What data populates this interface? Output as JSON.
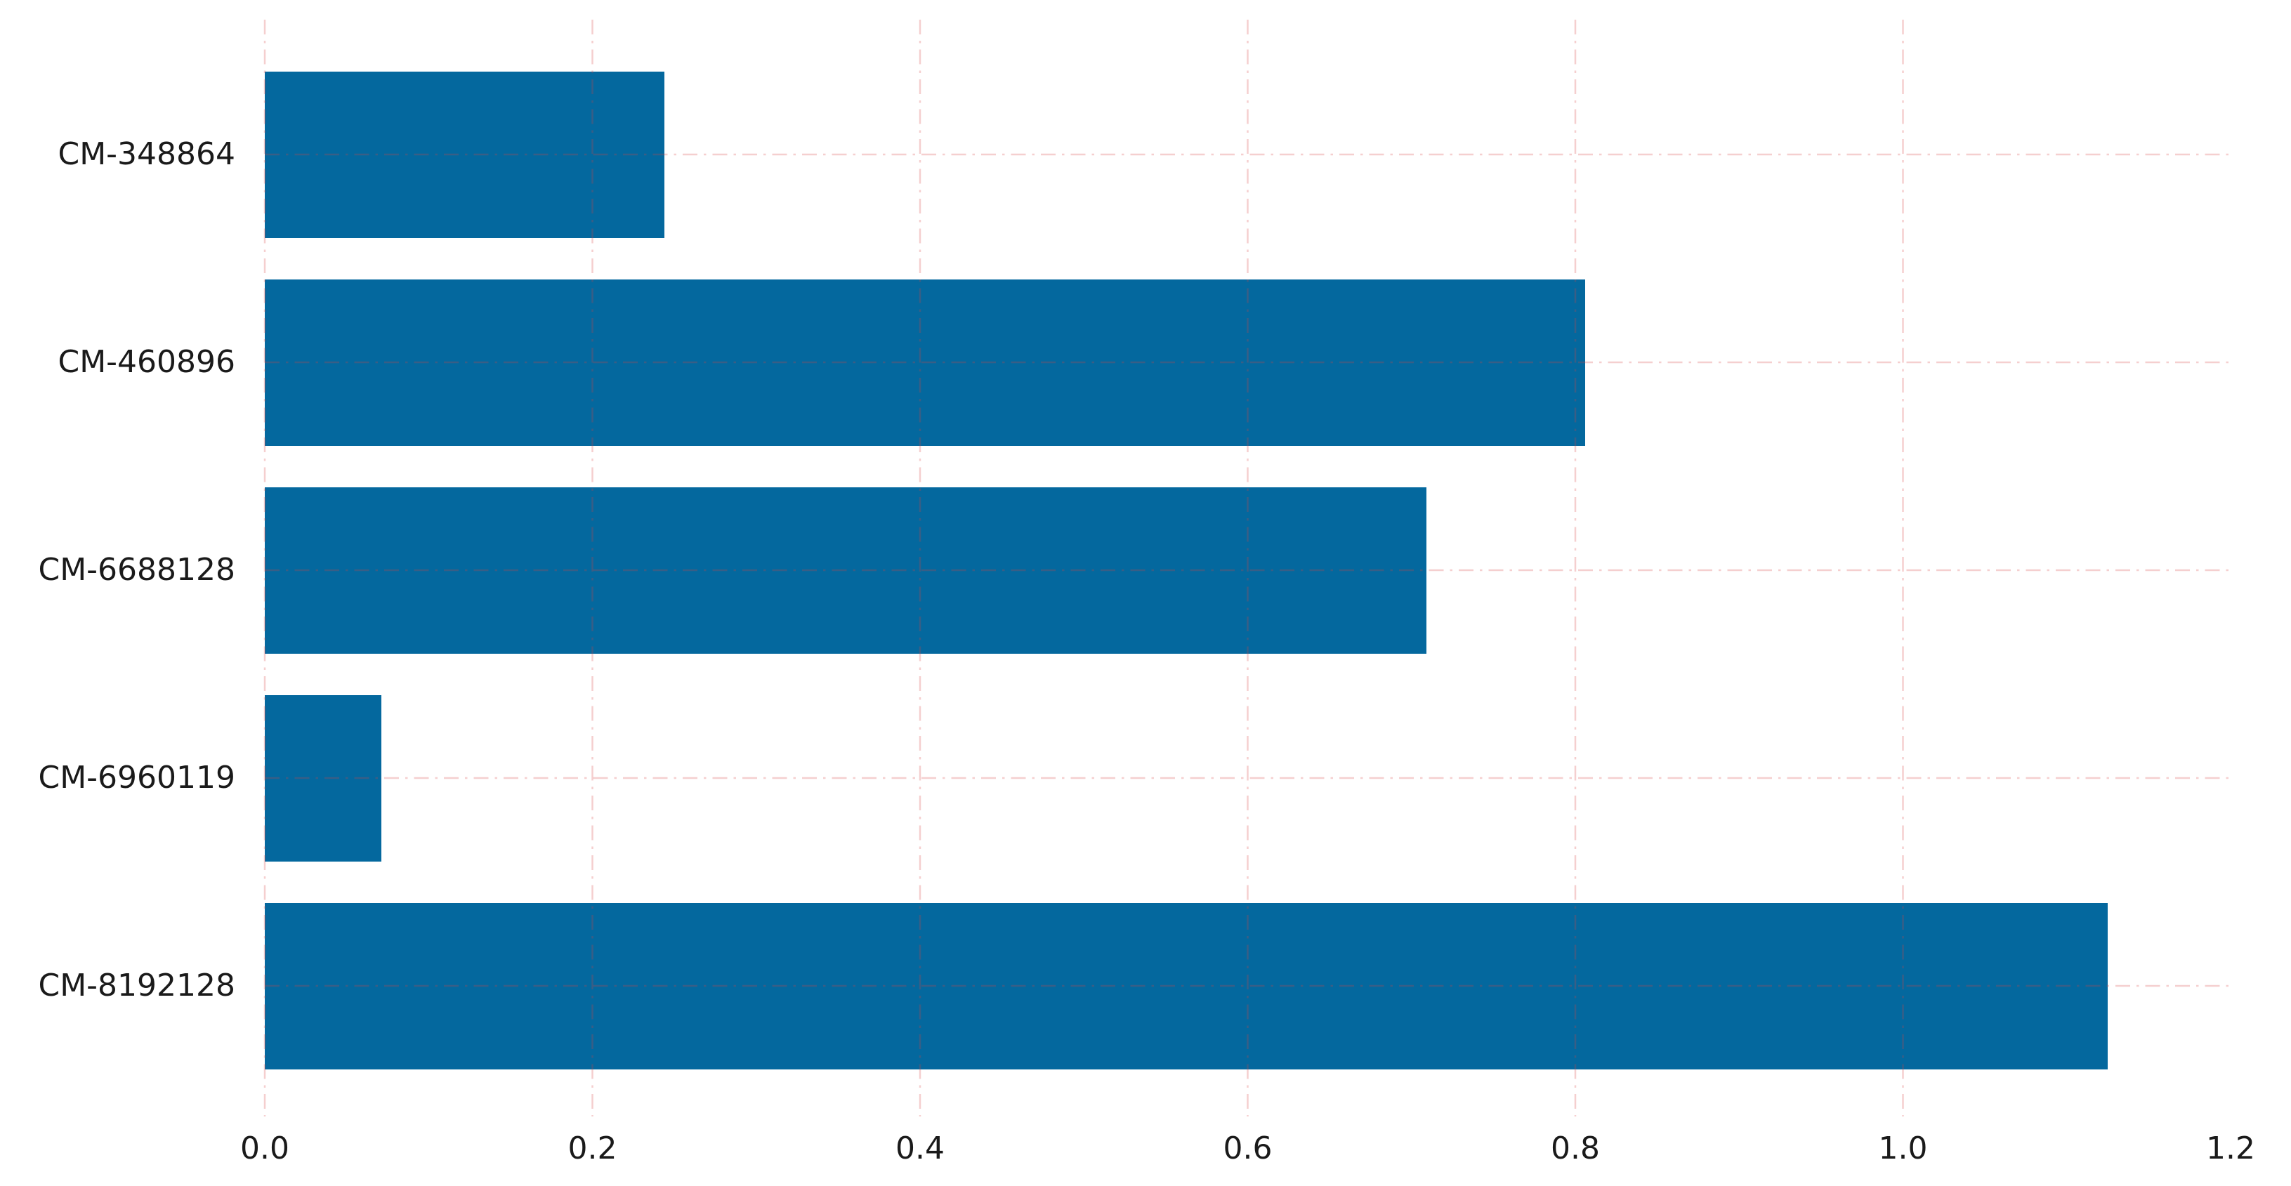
{
  "chart_data": {
    "type": "bar",
    "orientation": "horizontal",
    "title": "",
    "xlabel": "",
    "ylabel": "",
    "categories": [
      "CM-348864",
      "CM-460896",
      "CM-6688128",
      "CM-6960119",
      "CM-8192128"
    ],
    "values": [
      0.244,
      0.806,
      0.709,
      0.071,
      1.125
    ],
    "xlim": [
      0.0,
      1.2
    ],
    "xtick_labels": [
      "0.0",
      "0.2",
      "0.4",
      "0.6",
      "0.8",
      "1.0",
      "1.2"
    ],
    "xtick_values": [
      0.0,
      0.2,
      0.4,
      0.6,
      0.8,
      1.0,
      1.2
    ],
    "grid": true,
    "grid_style": "dash-dot",
    "gridlines_vertical_at": [
      0.0,
      0.2,
      0.4,
      0.6,
      0.8,
      1.0
    ],
    "legend": false,
    "colors": {
      "bar": "#04689e",
      "grid": "rgba(215,65,65,0.25)",
      "text": "#1a1a1a",
      "background": "#ffffff"
    }
  }
}
